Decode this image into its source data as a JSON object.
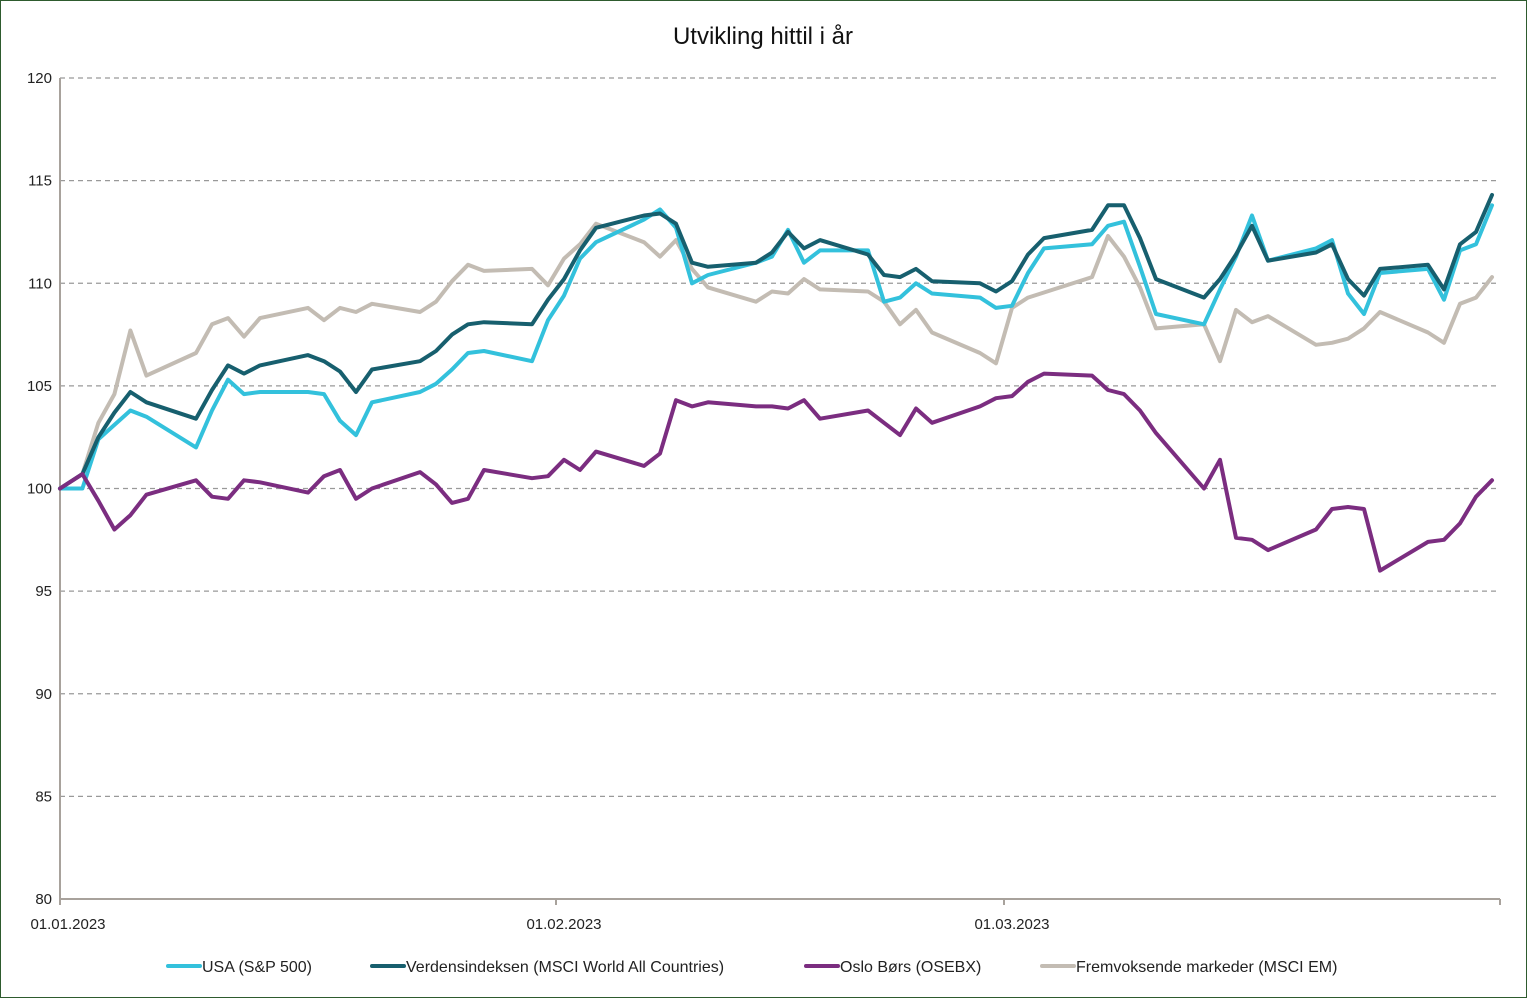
{
  "chart_data": {
    "type": "line",
    "title": "Utvikling hittil i år",
    "xlabel": "",
    "ylabel": "",
    "x_unit": "days since 01.01.2023",
    "xlim": [
      0,
      90
    ],
    "ylim": [
      80,
      120
    ],
    "y_ticks": [
      80,
      85,
      90,
      95,
      100,
      105,
      110,
      115,
      120
    ],
    "x_ticks": [
      {
        "value": 0,
        "label": "01.01.2023"
      },
      {
        "value": 31,
        "label": "01.02.2023"
      },
      {
        "value": 59,
        "label": "01.03.2023"
      }
    ],
    "grid": "horizontal dashed",
    "legend_position": "bottom",
    "x": [
      0,
      1.4,
      2.4,
      3.4,
      4.4,
      5.4,
      8.5,
      9.5,
      10.5,
      11.5,
      12.5,
      15.5,
      16.5,
      17.5,
      18.5,
      19.5,
      22.5,
      23.5,
      24.5,
      25.5,
      26.5,
      29.5,
      30.5,
      31.5,
      32.5,
      33.5,
      36.5,
      37.5,
      38.5,
      39.5,
      40.5,
      43.5,
      44.5,
      45.5,
      46.5,
      47.5,
      50.5,
      51.5,
      52.5,
      53.5,
      54.5,
      57.5,
      58.5,
      59.5,
      60.5,
      61.5,
      64.5,
      65.5,
      66.5,
      67.5,
      68.5,
      71.5,
      72.5,
      73.5,
      74.5,
      75.5,
      78.5,
      79.5,
      80.5,
      81.5,
      82.5,
      85.5,
      86.5,
      87.5,
      88.5,
      89.5
    ],
    "series": [
      {
        "name": "USA (S&P 500)",
        "color": "#33C1DC",
        "values": [
          100,
          100,
          102.4,
          103.1,
          103.8,
          103.5,
          102.0,
          103.8,
          105.3,
          104.6,
          104.7,
          104.7,
          104.6,
          103.3,
          102.6,
          104.2,
          104.7,
          105.1,
          105.8,
          106.6,
          106.7,
          106.2,
          108.2,
          109.4,
          111.2,
          112.0,
          113.1,
          113.6,
          112.7,
          110.0,
          110.4,
          111.0,
          111.3,
          112.6,
          111.0,
          111.6,
          111.6,
          109.1,
          109.3,
          110.0,
          109.5,
          109.3,
          108.8,
          108.9,
          110.5,
          111.7,
          111.9,
          112.8,
          113.0,
          110.8,
          108.5,
          108.0,
          109.7,
          111.3,
          113.3,
          111.1,
          111.7,
          112.1,
          109.5,
          108.5,
          110.5,
          110.7,
          109.2,
          111.6,
          111.9,
          113.8
        ]
      },
      {
        "name": "Verdensindeksen (MSCI World All Countries)",
        "color": "#175F6E",
        "values": [
          100,
          100.7,
          102.5,
          103.7,
          104.7,
          104.2,
          103.4,
          104.8,
          106.0,
          105.6,
          106.0,
          106.5,
          106.2,
          105.7,
          104.7,
          105.8,
          106.2,
          106.7,
          107.5,
          108.0,
          108.1,
          108.0,
          109.2,
          110.2,
          111.6,
          112.7,
          113.3,
          113.4,
          112.9,
          111.0,
          110.8,
          111.0,
          111.5,
          112.5,
          111.7,
          112.1,
          111.4,
          110.4,
          110.3,
          110.7,
          110.1,
          110.0,
          109.6,
          110.1,
          111.4,
          112.2,
          112.6,
          113.8,
          113.8,
          112.2,
          110.2,
          109.3,
          110.2,
          111.4,
          112.8,
          111.1,
          111.5,
          111.9,
          110.2,
          109.4,
          110.7,
          110.9,
          109.7,
          111.9,
          112.5,
          114.3
        ]
      },
      {
        "name": "Oslo Børs (OSEBX)",
        "color": "#7B2D80",
        "values": [
          100,
          100.7,
          99.4,
          98.0,
          98.7,
          99.7,
          100.4,
          99.6,
          99.5,
          100.4,
          100.3,
          99.8,
          100.6,
          100.9,
          99.5,
          100.0,
          100.8,
          100.2,
          99.3,
          99.5,
          100.9,
          100.5,
          100.6,
          101.4,
          100.9,
          101.8,
          101.1,
          101.7,
          104.3,
          104.0,
          104.2,
          104.0,
          104.0,
          103.9,
          104.3,
          103.4,
          103.8,
          103.2,
          102.6,
          103.9,
          103.2,
          104.0,
          104.4,
          104.5,
          105.2,
          105.6,
          105.5,
          104.8,
          104.6,
          103.8,
          102.7,
          100.0,
          101.4,
          97.6,
          97.5,
          97.0,
          98.0,
          99.0,
          99.1,
          99.0,
          96.0,
          97.4,
          97.5,
          98.3,
          99.6,
          100.4
        ]
      },
      {
        "name": "Fremvoksende markeder (MSCI EM)",
        "color": "#C3BCB3",
        "values": [
          100,
          100.7,
          103.2,
          104.6,
          107.7,
          105.5,
          106.6,
          108.0,
          108.3,
          107.4,
          108.3,
          108.8,
          108.2,
          108.8,
          108.6,
          109.0,
          108.6,
          109.1,
          110.1,
          110.9,
          110.6,
          110.7,
          109.9,
          111.2,
          111.9,
          112.9,
          112.0,
          111.3,
          112.1,
          110.7,
          109.8,
          109.1,
          109.6,
          109.5,
          110.2,
          109.7,
          109.6,
          109.1,
          108.0,
          108.7,
          107.6,
          106.6,
          106.1,
          108.8,
          109.3,
          109.55,
          110.3,
          112.3,
          111.3,
          109.8,
          107.8,
          108.0,
          106.2,
          108.7,
          108.1,
          108.4,
          107.0,
          107.1,
          107.3,
          107.8,
          108.6,
          107.6,
          107.1,
          109.0,
          109.3,
          110.3
        ]
      }
    ]
  }
}
